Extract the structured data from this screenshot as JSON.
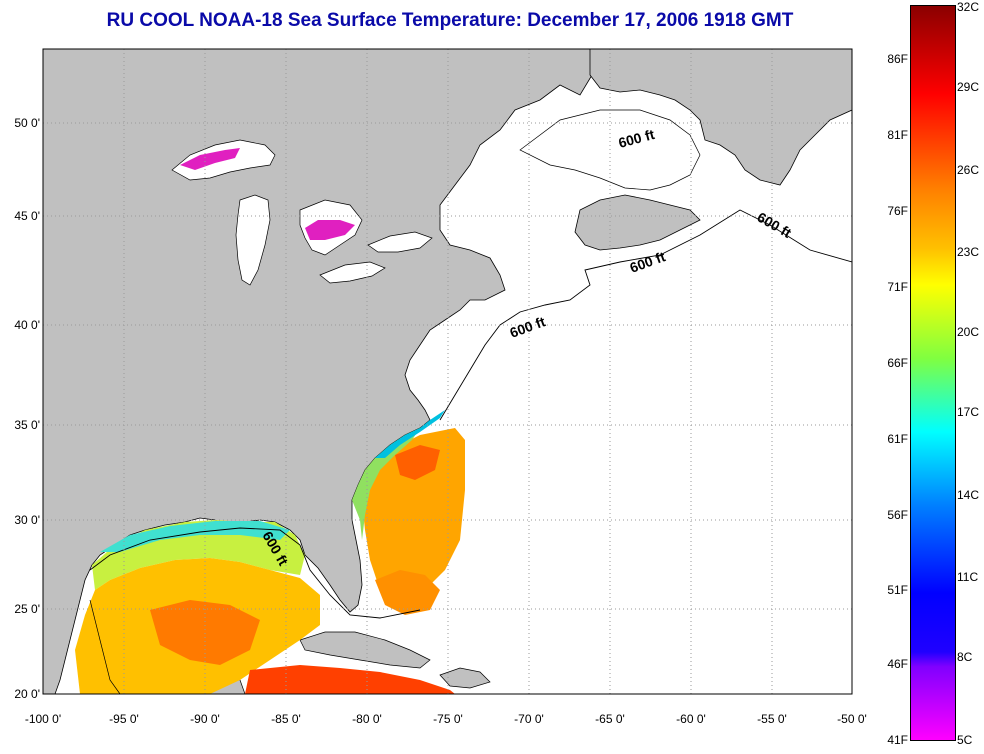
{
  "title": "RU COOL  NOAA-18  Sea Surface Temperature:  December 17, 2006 1918 GMT",
  "map": {
    "lat_ticks": [
      "50 0'",
      "45 0'",
      "40 0'",
      "35 0'",
      "30 0'",
      "25 0'",
      "20 0'"
    ],
    "lon_ticks": [
      "-100 0'",
      "-95 0'",
      "-90 0'",
      "-85 0'",
      "-80 0'",
      "-75 0'",
      "-70 0'",
      "-65 0'",
      "-60 0'",
      "-55 0'",
      "-50 0'"
    ],
    "contour_labels": [
      "600 ft",
      "600 ft",
      "600 ft",
      "600 ft",
      "600 ft"
    ],
    "colors": {
      "land": "#c0c0c0",
      "ocean": "#ffffff",
      "grid": "#9a9a9a"
    }
  },
  "colorbar": {
    "fahrenheit": [
      "86F",
      "81F",
      "76F",
      "71F",
      "66F",
      "61F",
      "56F",
      "51F",
      "46F",
      "41F"
    ],
    "celsius": [
      "32C",
      "29C",
      "26C",
      "23C",
      "20C",
      "17C",
      "14C",
      "11C",
      "8C",
      "5C"
    ],
    "colors": [
      "#8b0000",
      "#ff0000",
      "#ff8000",
      "#ffff00",
      "#80ff40",
      "#00ffff",
      "#0080ff",
      "#0000ff",
      "#8000ff",
      "#ff00ff"
    ]
  }
}
